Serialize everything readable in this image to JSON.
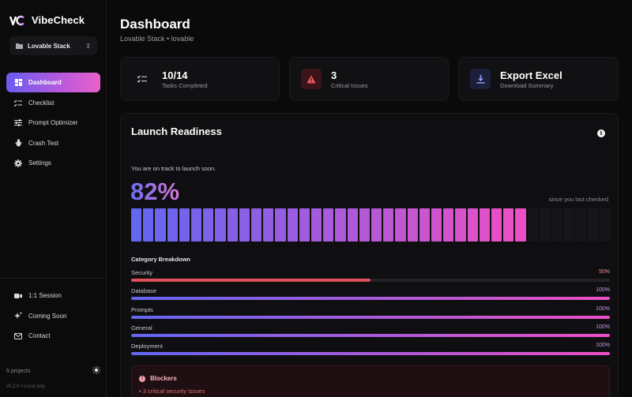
{
  "app": {
    "name": "VibeCheck",
    "version": "v0.2.0 • Local only"
  },
  "project_selector": {
    "value": "Lovable Stack"
  },
  "nav": [
    {
      "label": "Dashboard",
      "icon": "dashboard-icon",
      "active": true
    },
    {
      "label": "Checklist",
      "icon": "checklist-icon",
      "active": false
    },
    {
      "label": "Prompt Optimizer",
      "icon": "sliders-icon",
      "active": false
    },
    {
      "label": "Crash Test",
      "icon": "bug-icon",
      "active": false
    },
    {
      "label": "Settings",
      "icon": "gear-icon",
      "active": false
    }
  ],
  "nav_bottom": [
    {
      "label": "1:1 Session",
      "icon": "video-icon"
    },
    {
      "label": "Coming Soon",
      "icon": "sparkle-icon"
    },
    {
      "label": "Contact",
      "icon": "mail-icon"
    }
  ],
  "sidebar_footer": {
    "projects_count": "5 projects"
  },
  "header": {
    "title": "Dashboard",
    "subtitle": "Lovable Stack • lovable"
  },
  "stats": {
    "tasks": {
      "value": "10/14",
      "label": "Tasks Completed"
    },
    "issues": {
      "value": "3",
      "label": "Critical Issues"
    },
    "export": {
      "value": "Export Excel",
      "label": "Download Summary"
    }
  },
  "readiness": {
    "title": "Launch Readiness",
    "message": "You are on track to launch soon.",
    "percent_text": "82%",
    "percent": 82,
    "since": "since you last checked",
    "segments_total": 40,
    "segments_filled": 33
  },
  "breakdown": {
    "title": "Category Breakdown",
    "categories": [
      {
        "name": "Security",
        "value_text": "50%",
        "value": 50,
        "tone": "danger"
      },
      {
        "name": "Database",
        "value_text": "100%",
        "value": 100,
        "tone": "ok"
      },
      {
        "name": "Prompts",
        "value_text": "100%",
        "value": 100,
        "tone": "ok"
      },
      {
        "name": "General",
        "value_text": "100%",
        "value": 100,
        "tone": "ok"
      },
      {
        "name": "Deployment",
        "value_text": "100%",
        "value": 100,
        "tone": "ok"
      }
    ]
  },
  "blockers": {
    "title": "Blockers",
    "items": [
      "• 3 critical security issues"
    ]
  },
  "colors": {
    "accent_start": "#6366f1",
    "accent_end": "#ec4fc4",
    "danger": "#e0505c",
    "background": "#0a0a0b"
  }
}
